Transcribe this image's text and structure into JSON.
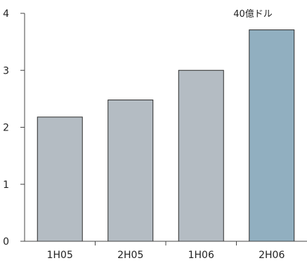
{
  "chart_data": {
    "type": "bar",
    "title": "",
    "xlabel": "",
    "ylabel": "",
    "unit_annotation": "40億ドル",
    "categories": [
      "1H05",
      "2H05",
      "1H06",
      "2H06"
    ],
    "values": [
      2.18,
      2.48,
      3.0,
      3.71
    ],
    "ylim": [
      0,
      4
    ],
    "yticks": [
      0,
      1,
      2,
      3,
      4
    ],
    "grid": false,
    "legend": "none",
    "colors": {
      "bar": "#b4bcc3",
      "bar_highlight": "#91afc0",
      "bar_stroke": "#2b2b2b",
      "axis": "#444444"
    },
    "highlight_index": 3
  }
}
